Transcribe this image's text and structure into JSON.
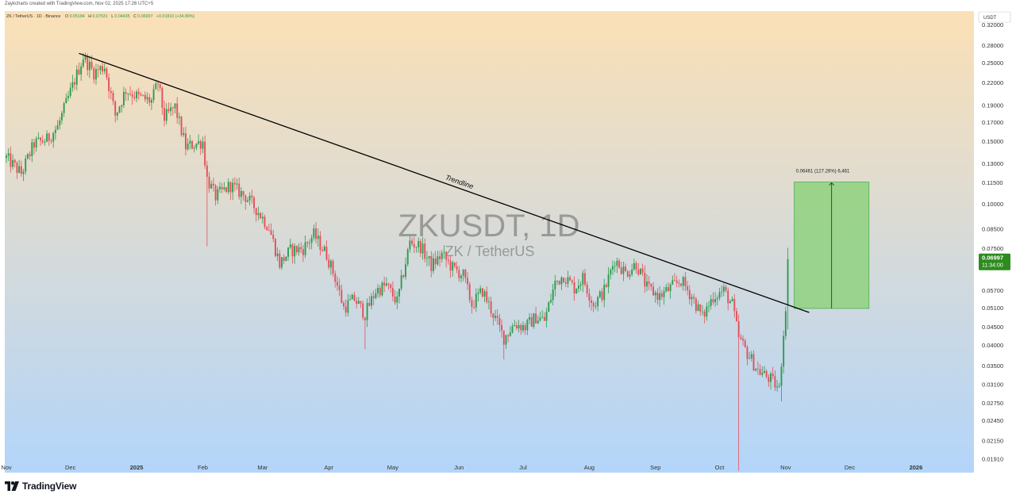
{
  "header": {
    "credit": "Zaykcharts created with TradingView.com, Nov 02, 2025 17:26 UTC+5"
  },
  "chart_data": {
    "type": "candlestick",
    "title": "ZKUSDT, 1D",
    "subtitle": "ZK / TetherUS",
    "legend": {
      "symbol": "ZK / TetherUS · 1D · Binance",
      "o_label": "O",
      "o_value": "0.05184",
      "h_label": "H",
      "h_value": "0.07531",
      "l_label": "L",
      "l_value": "0.04435",
      "c_label": "C",
      "c_value": "0.06997",
      "change": "+0.01810 (+34.89%)"
    },
    "currency": "USDT",
    "scale": "log",
    "ylim": [
      0.0175,
      0.35
    ],
    "y_ticks": [
      "0.32000",
      "0.28000",
      "0.25000",
      "0.22000",
      "0.19000",
      "0.17000",
      "0.15000",
      "0.13000",
      "0.11500",
      "0.10000",
      "0.08500",
      "0.07500",
      "0.05700",
      "0.05100",
      "0.04500",
      "0.04000",
      "0.03500",
      "0.03100",
      "0.02750",
      "0.02450",
      "0.02150",
      "0.01910"
    ],
    "x_ticks": [
      {
        "label": "Nov",
        "date": "2024-11-01"
      },
      {
        "label": "Dec",
        "date": "2024-12-01"
      },
      {
        "label": "2025",
        "date": "2025-01-01"
      },
      {
        "label": "Feb",
        "date": "2025-02-01"
      },
      {
        "label": "Mar",
        "date": "2025-03-01"
      },
      {
        "label": "Apr",
        "date": "2025-04-01"
      },
      {
        "label": "May",
        "date": "2025-05-01"
      },
      {
        "label": "Jun",
        "date": "2025-06-01"
      },
      {
        "label": "Jul",
        "date": "2025-07-01"
      },
      {
        "label": "Aug",
        "date": "2025-08-01"
      },
      {
        "label": "Sep",
        "date": "2025-09-01"
      },
      {
        "label": "Oct",
        "date": "2025-10-01"
      },
      {
        "label": "Nov",
        "date": "2025-11-01"
      },
      {
        "label": "Dec",
        "date": "2025-12-01"
      },
      {
        "label": "2026",
        "date": "2026-01-01"
      }
    ],
    "price_path": [
      [
        "2024-11-01",
        0.135
      ],
      [
        "2024-11-08",
        0.122
      ],
      [
        "2024-11-14",
        0.148
      ],
      [
        "2024-11-20",
        0.152
      ],
      [
        "2024-11-25",
        0.165
      ],
      [
        "2024-12-02",
        0.215
      ],
      [
        "2024-12-07",
        0.26
      ],
      [
        "2024-12-12",
        0.235
      ],
      [
        "2024-12-17",
        0.245
      ],
      [
        "2024-12-22",
        0.178
      ],
      [
        "2024-12-27",
        0.21
      ],
      [
        "2025-01-02",
        0.2
      ],
      [
        "2025-01-08",
        0.195
      ],
      [
        "2025-01-11",
        0.22
      ],
      [
        "2025-01-14",
        0.175
      ],
      [
        "2025-01-19",
        0.188
      ],
      [
        "2025-01-24",
        0.145
      ],
      [
        "2025-02-01",
        0.15
      ],
      [
        "2025-02-03",
        0.118
      ],
      [
        "2025-02-07",
        0.105
      ],
      [
        "2025-02-14",
        0.113
      ],
      [
        "2025-02-21",
        0.105
      ],
      [
        "2025-02-26",
        0.097
      ],
      [
        "2025-03-04",
        0.086
      ],
      [
        "2025-03-09",
        0.068
      ],
      [
        "2025-03-14",
        0.074
      ],
      [
        "2025-03-20",
        0.075
      ],
      [
        "2025-03-25",
        0.082
      ],
      [
        "2025-03-31",
        0.072
      ],
      [
        "2025-04-04",
        0.062
      ],
      [
        "2025-04-08",
        0.051
      ],
      [
        "2025-04-13",
        0.054
      ],
      [
        "2025-04-18",
        0.049
      ],
      [
        "2025-04-23",
        0.057
      ],
      [
        "2025-04-28",
        0.059
      ],
      [
        "2025-05-03",
        0.053
      ],
      [
        "2025-05-09",
        0.078
      ],
      [
        "2025-05-14",
        0.076
      ],
      [
        "2025-05-19",
        0.067
      ],
      [
        "2025-05-24",
        0.072
      ],
      [
        "2025-05-29",
        0.066
      ],
      [
        "2025-06-03",
        0.063
      ],
      [
        "2025-06-07",
        0.052
      ],
      [
        "2025-06-12",
        0.057
      ],
      [
        "2025-06-17",
        0.049
      ],
      [
        "2025-06-22",
        0.042
      ],
      [
        "2025-06-27",
        0.046
      ],
      [
        "2025-07-02",
        0.045
      ],
      [
        "2025-07-07",
        0.048
      ],
      [
        "2025-07-11",
        0.047
      ],
      [
        "2025-07-16",
        0.06
      ],
      [
        "2025-07-20",
        0.063
      ],
      [
        "2025-07-25",
        0.058
      ],
      [
        "2025-07-29",
        0.062
      ],
      [
        "2025-08-03",
        0.052
      ],
      [
        "2025-08-08",
        0.057
      ],
      [
        "2025-08-13",
        0.07
      ],
      [
        "2025-08-18",
        0.064
      ],
      [
        "2025-08-23",
        0.068
      ],
      [
        "2025-08-28",
        0.058
      ],
      [
        "2025-09-03",
        0.055
      ],
      [
        "2025-09-08",
        0.058
      ],
      [
        "2025-09-13",
        0.061
      ],
      [
        "2025-09-18",
        0.055
      ],
      [
        "2025-09-23",
        0.048
      ],
      [
        "2025-09-28",
        0.055
      ],
      [
        "2025-10-03",
        0.057
      ],
      [
        "2025-10-07",
        0.052
      ],
      [
        "2025-10-10",
        0.042
      ],
      [
        "2025-10-14",
        0.038
      ],
      [
        "2025-10-19",
        0.034
      ],
      [
        "2025-10-25",
        0.032
      ],
      [
        "2025-10-29",
        0.03
      ],
      [
        "2025-11-01",
        0.052
      ],
      [
        "2025-11-02",
        0.06997
      ]
    ],
    "trendline": {
      "label": "Trendline",
      "from": {
        "date": "2024-12-05",
        "price": 0.266
      },
      "to": {
        "date": "2025-11-12",
        "price": 0.0495
      },
      "color": "#000000"
    },
    "measure": {
      "label": "0.06461 (127.26%) 6,461",
      "from_price": 0.0508,
      "to_price": 0.1154,
      "start_date": "2025-11-05",
      "end_date": "2025-12-10",
      "fill": "#8fd17f",
      "border": "#4caf50"
    },
    "last_price": {
      "value": "0.06997",
      "countdown": "11:34:00",
      "color": "#2e8b1e"
    },
    "colors": {
      "up": "#2e9b4e",
      "down": "#e2505a",
      "bg_top": "#fbe0b6",
      "bg_bottom": "#b3d5fa"
    }
  },
  "branding": {
    "name": "TradingView"
  }
}
